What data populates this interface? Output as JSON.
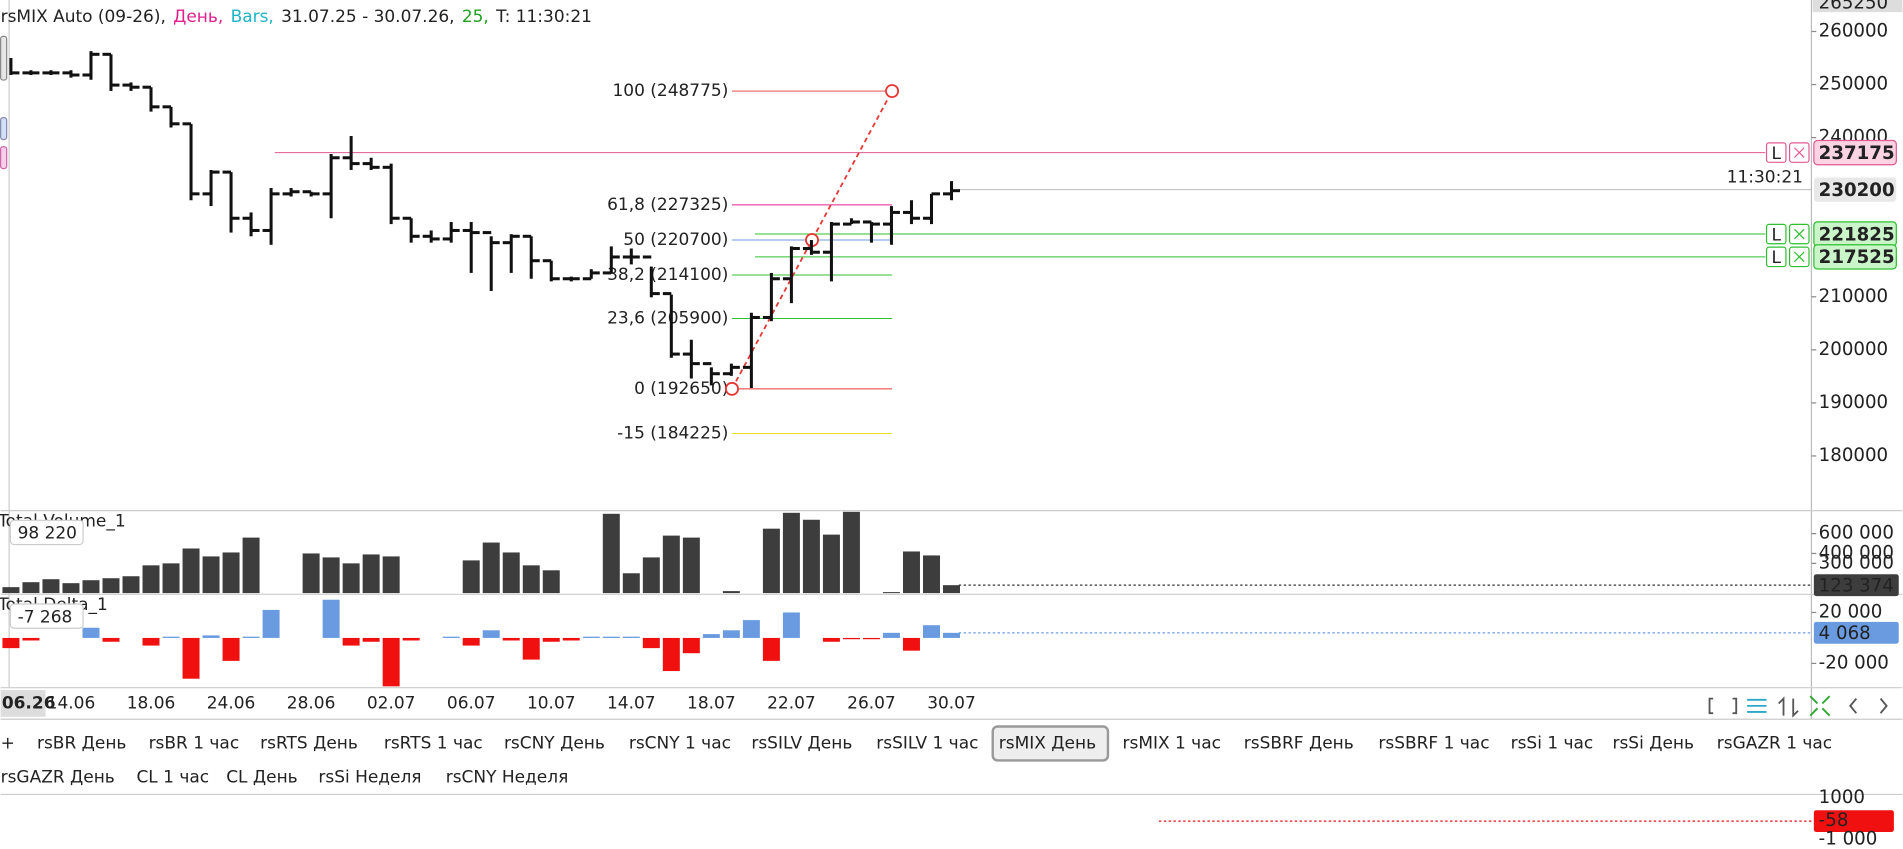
{
  "header": {
    "segments": [
      {
        "text": "rsMIX Auto (09-26),",
        "color": "#222222"
      },
      {
        "text": "День,",
        "color": "#e0208c"
      },
      {
        "text": "Bars,",
        "color": "#1fb5c8"
      },
      {
        "text": "31.07.25 - 30.07.26,",
        "color": "#222222"
      },
      {
        "text": "25,",
        "color": "#22a022"
      },
      {
        "text": "T: 11:30:21",
        "color": "#222222"
      }
    ]
  },
  "chart_data": [
    {
      "type": "ohlc",
      "name": "price",
      "categories": [
        null,
        null,
        null,
        "14.06",
        null,
        null,
        null,
        "18.06",
        null,
        null,
        null,
        "24.06",
        null,
        null,
        null,
        "28.06",
        null,
        null,
        null,
        "02.07",
        null,
        null,
        null,
        "06.07",
        null,
        null,
        null,
        "10.07",
        null,
        null,
        null,
        "14.07",
        null,
        null,
        null,
        "18.07",
        null,
        null,
        null,
        "22.07",
        null,
        null,
        null,
        "26.07",
        null,
        null,
        null,
        "30.07"
      ],
      "high": [
        255000,
        252700,
        252700,
        252700,
        256300,
        255700,
        250400,
        249500,
        245800,
        242600,
        233900,
        233500,
        225900,
        230500,
        230500,
        229800,
        236900,
        240300,
        236200,
        235100,
        224800,
        222500,
        224100,
        224100,
        221400,
        221800,
        221400,
        216800,
        213800,
        215200,
        219500,
        219100,
        215700,
        210400,
        201900,
        196700,
        197400,
        207000,
        214500,
        219500,
        220700,
        224100,
        224800,
        224100,
        227100,
        228200,
        229400,
        231800
      ],
      "low": [
        251800,
        251800,
        251800,
        251300,
        250900,
        248800,
        248800,
        244900,
        241900,
        228200,
        227100,
        222100,
        221400,
        219800,
        228900,
        228900,
        224800,
        233900,
        233900,
        223700,
        220200,
        220200,
        220200,
        214500,
        211100,
        214500,
        213400,
        212900,
        212900,
        213400,
        214500,
        216100,
        209900,
        198500,
        194600,
        193300,
        195100,
        192800,
        205400,
        208800,
        217900,
        212900,
        223700,
        220200,
        219800,
        223700,
        223700,
        228200
      ],
      "close": [
        252200,
        252200,
        252200,
        251800,
        255700,
        249900,
        249500,
        245800,
        242600,
        229400,
        233500,
        224800,
        222500,
        229400,
        229800,
        229400,
        236200,
        235100,
        234400,
        224800,
        221400,
        220900,
        222500,
        222100,
        220200,
        221400,
        216800,
        213400,
        213400,
        214500,
        217500,
        217500,
        210600,
        199200,
        197400,
        195500,
        196700,
        206100,
        213400,
        219100,
        218400,
        223700,
        224100,
        223700,
        225900,
        224800,
        229400,
        230000
      ],
      "color": "#111111",
      "ylim": [
        169700,
        265250
      ],
      "yticks": [
        180000,
        190000,
        200000,
        210000,
        240000,
        250000,
        260000
      ],
      "top_label": 265250,
      "time_label": "11:30:21",
      "cursor_label": "06.26",
      "fib_levels": [
        {
          "label": "100 (248775)",
          "value": 248775,
          "color": "#e53935"
        },
        {
          "label": "61,8 (227325)",
          "value": 227325,
          "color": "#e0208c"
        },
        {
          "label": "50 (220700)",
          "value": 220700,
          "color": "#6a9be0"
        },
        {
          "label": "38,2 (214100)",
          "value": 214100,
          "color": "#33c233"
        },
        {
          "label": "23,6 (205900)",
          "value": 205900,
          "color": "#33c233"
        },
        {
          "label": "0 (192650)",
          "value": 192650,
          "color": "#e53935"
        },
        {
          "label": "-15 (184225)",
          "value": 184225,
          "color": "#e8e020"
        }
      ],
      "order_lines": [
        {
          "value": 237175,
          "color": "#e05a90",
          "fill": "#fcd3e3",
          "tag": "L"
        },
        {
          "value": 221825,
          "color": "#2ec02e",
          "fill": "#c9f5c9",
          "tag": "L"
        },
        {
          "value": 217525,
          "color": "#2ec02e",
          "fill": "#c9f5c9",
          "tag": "L"
        }
      ],
      "last_price": 230200
    },
    {
      "type": "bar",
      "name": "Total Volume_1",
      "title": "Total Volume_1",
      "value_box": "98 220",
      "last_label": "123 374",
      "color": "#3d3d3d",
      "values": [
        60000,
        110000,
        140000,
        100000,
        130000,
        150000,
        170000,
        280000,
        300000,
        450000,
        370000,
        410000,
        560000,
        0,
        0,
        400000,
        360000,
        300000,
        390000,
        370000,
        0,
        0,
        0,
        330000,
        510000,
        410000,
        280000,
        230000,
        0,
        0,
        800000,
        200000,
        360000,
        580000,
        560000,
        0,
        20000,
        0,
        650000,
        810000,
        740000,
        590000,
        820000,
        0,
        10000,
        420000,
        380000,
        80000
      ],
      "ylim": [
        0,
        820000
      ],
      "yticks": [
        {
          "value": 300000,
          "label": "300 000"
        },
        {
          "value": 400000,
          "label": "400 000"
        },
        {
          "value": 600000,
          "label": "600 000"
        }
      ]
    },
    {
      "type": "bar",
      "name": "Total Delta_1",
      "title": "Total Delta_1",
      "value_box": "-7 268",
      "last_label": "4 068",
      "pos_color": "#6a9be0",
      "neg_color": "#f01010",
      "values": [
        -8000,
        -2000,
        0,
        0,
        8000,
        -3000,
        0,
        -6000,
        1000,
        -32000,
        2000,
        -18000,
        1000,
        22000,
        0,
        0,
        30000,
        -6000,
        -3000,
        -38000,
        -2000,
        0,
        1000,
        -6000,
        6000,
        -2000,
        -17000,
        -3000,
        -2000,
        1000,
        1000,
        1000,
        -8000,
        -26000,
        -12000,
        3000,
        6000,
        14000,
        -18000,
        20000,
        0,
        -3000,
        -1000,
        -1000,
        4000,
        -10000,
        10000,
        4000
      ],
      "ylim": [
        -38100,
        33300
      ],
      "yticks": [
        {
          "value": 20000,
          "label": "20 000"
        },
        {
          "value": -20000,
          "label": "-20 000"
        }
      ]
    }
  ],
  "tabs": [
    {
      "label": "+",
      "color": "#222222"
    },
    {
      "label": "rsBR День",
      "color": "#e02828"
    },
    {
      "label": "rsBR 1 час",
      "color": "#e02828"
    },
    {
      "label": "rsRTS День",
      "color": "#3ccc3c"
    },
    {
      "label": "rsRTS 1 час",
      "color": "#3ccc3c"
    },
    {
      "label": "rsCNY День",
      "color": "#2255cc"
    },
    {
      "label": "rsCNY 1 час",
      "color": "#2255cc"
    },
    {
      "label": "rsSILV День",
      "color": "#b08a20"
    },
    {
      "label": "rsSILV 1 час",
      "color": "#b08a20"
    },
    {
      "label": "rsMIX День",
      "color": "#3fd6e0",
      "selected": true
    },
    {
      "label": "rsMIX 1 час",
      "color": "#3fd6e0"
    },
    {
      "label": "rsSBRF День",
      "color": "#f0a030"
    },
    {
      "label": "rsSBRF 1 час",
      "color": "#f0a030"
    },
    {
      "label": "rsSi 1 час",
      "color": "#8a3aa8"
    },
    {
      "label": "rsSi День",
      "color": "#7a2a98"
    },
    {
      "label": "rsGAZR 1 час",
      "color": "#222222"
    },
    {
      "label": "rsGAZR День",
      "color": "#222222"
    },
    {
      "label": "CL 1 час",
      "color": "#222222"
    },
    {
      "label": "CL День",
      "color": "#222222"
    },
    {
      "label": "rsSi Неделя",
      "color": "#222222"
    },
    {
      "label": "rsCNY Неделя",
      "color": "#222222"
    }
  ],
  "mini_panel": {
    "top_label": "1000",
    "value_box": "-58",
    "bottom_label": "-1 000"
  }
}
